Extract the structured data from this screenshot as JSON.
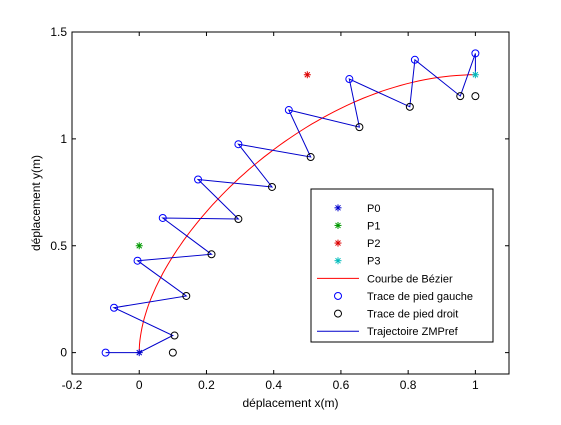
{
  "chart_data": {
    "type": "scatter",
    "xlabel": "déplacement x(m)",
    "ylabel": "déplacement y(m)",
    "xlim": [
      -0.2,
      1.1
    ],
    "ylim": [
      -0.1,
      1.5
    ],
    "grid": false,
    "legend_position": "lower-right",
    "x_ticks": [
      {
        "value": -0.2,
        "label": "-0.2"
      },
      {
        "value": 0,
        "label": "0"
      },
      {
        "value": 0.2,
        "label": "0.2"
      },
      {
        "value": 0.4,
        "label": "0.4"
      },
      {
        "value": 0.6,
        "label": "0.6"
      },
      {
        "value": 0.8,
        "label": "0.8"
      },
      {
        "value": 1,
        "label": "1"
      }
    ],
    "y_ticks": [
      {
        "value": 0,
        "label": "0"
      },
      {
        "value": 0.5,
        "label": "0.5"
      },
      {
        "value": 1,
        "label": "1"
      },
      {
        "value": 1.5,
        "label": "1.5"
      }
    ],
    "control_points": [
      {
        "name": "P0",
        "x": 0,
        "y": 0,
        "color": "#0000cc"
      },
      {
        "name": "P1",
        "x": 0,
        "y": 0.5,
        "color": "#009900"
      },
      {
        "name": "P2",
        "x": 0.5,
        "y": 1.3,
        "color": "#dd0000"
      },
      {
        "name": "P3",
        "x": 1,
        "y": 1.3,
        "color": "#00bbbb"
      }
    ],
    "bezier": {
      "name": "Courbe de Bézier",
      "color": "#ff0000"
    },
    "left_foot": {
      "name": "Trace de pied gauche",
      "color": "#0000ff",
      "points": [
        [
          -0.1,
          0
        ],
        [
          -0.075,
          0.21
        ],
        [
          -0.005,
          0.43
        ],
        [
          0.07,
          0.63
        ],
        [
          0.175,
          0.81
        ],
        [
          0.295,
          0.975
        ],
        [
          0.445,
          1.135
        ],
        [
          0.625,
          1.28
        ],
        [
          0.82,
          1.37
        ],
        [
          1.0,
          1.4
        ]
      ]
    },
    "right_foot": {
      "name": "Trace de pied droit",
      "color": "#000000",
      "points": [
        [
          0.1,
          0
        ],
        [
          0.105,
          0.08
        ],
        [
          0.14,
          0.265
        ],
        [
          0.215,
          0.46
        ],
        [
          0.295,
          0.625
        ],
        [
          0.395,
          0.775
        ],
        [
          0.51,
          0.915
        ],
        [
          0.655,
          1.055
        ],
        [
          0.805,
          1.15
        ],
        [
          0.955,
          1.2
        ],
        [
          1.0,
          1.2
        ]
      ]
    },
    "zmp": {
      "name": "Trajectoire ZMPref",
      "color": "#0000cc",
      "points": [
        [
          -0.1,
          0
        ],
        [
          0,
          0
        ],
        [
          0.1,
          0.08
        ],
        [
          -0.075,
          0.21
        ],
        [
          0.14,
          0.265
        ],
        [
          -0.005,
          0.43
        ],
        [
          0.215,
          0.46
        ],
        [
          0.07,
          0.63
        ],
        [
          0.295,
          0.625
        ],
        [
          0.175,
          0.81
        ],
        [
          0.395,
          0.775
        ],
        [
          0.295,
          0.975
        ],
        [
          0.51,
          0.915
        ],
        [
          0.445,
          1.135
        ],
        [
          0.655,
          1.055
        ],
        [
          0.625,
          1.28
        ],
        [
          0.805,
          1.15
        ],
        [
          0.82,
          1.37
        ],
        [
          0.955,
          1.2
        ],
        [
          1.0,
          1.4
        ],
        [
          1.0,
          1.3
        ]
      ]
    }
  }
}
